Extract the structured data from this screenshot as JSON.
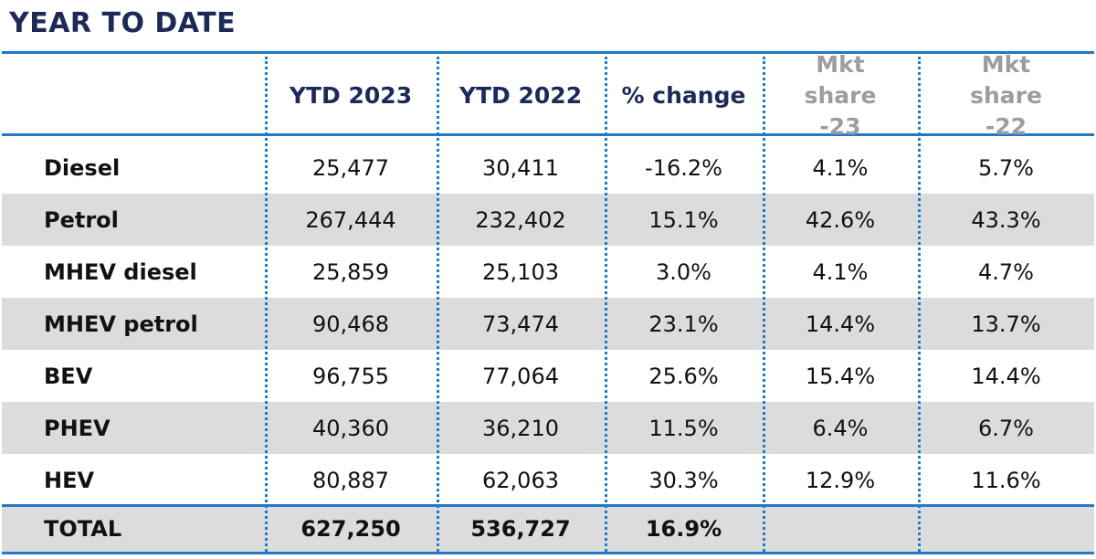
{
  "title": "YEAR TO DATE",
  "colors": {
    "title": "#1c2a58",
    "rule": "#1f7bc9",
    "band": "#dcdcdc",
    "muted_header": "#9d9d9d"
  },
  "chart_data": {
    "type": "table",
    "columns": [
      {
        "label": "YTD 2023",
        "style": "primary"
      },
      {
        "label": "YTD 2022",
        "style": "primary"
      },
      {
        "label": "% change",
        "style": "primary"
      },
      {
        "label": "Mkt share -23",
        "style": "muted"
      },
      {
        "label": "Mkt share -22",
        "style": "muted"
      }
    ],
    "rows": [
      {
        "label": "Diesel",
        "values": [
          "25,477",
          "30,411",
          "-16.2%",
          "4.1%",
          "5.7%"
        ]
      },
      {
        "label": "Petrol",
        "values": [
          "267,444",
          "232,402",
          "15.1%",
          "42.6%",
          "43.3%"
        ]
      },
      {
        "label": "MHEV diesel",
        "values": [
          "25,859",
          "25,103",
          "3.0%",
          "4.1%",
          "4.7%"
        ]
      },
      {
        "label": "MHEV petrol",
        "values": [
          "90,468",
          "73,474",
          "23.1%",
          "14.4%",
          "13.7%"
        ]
      },
      {
        "label": "BEV",
        "values": [
          "96,755",
          "77,064",
          "25.6%",
          "15.4%",
          "14.4%"
        ]
      },
      {
        "label": "PHEV",
        "values": [
          "40,360",
          "36,210",
          "11.5%",
          "6.4%",
          "6.7%"
        ]
      },
      {
        "label": "HEV",
        "values": [
          "80,887",
          "62,063",
          "30.3%",
          "12.9%",
          "11.6%"
        ]
      }
    ],
    "total": {
      "label": "TOTAL",
      "values": [
        "627,250",
        "536,727",
        "16.9%",
        "",
        ""
      ]
    }
  }
}
